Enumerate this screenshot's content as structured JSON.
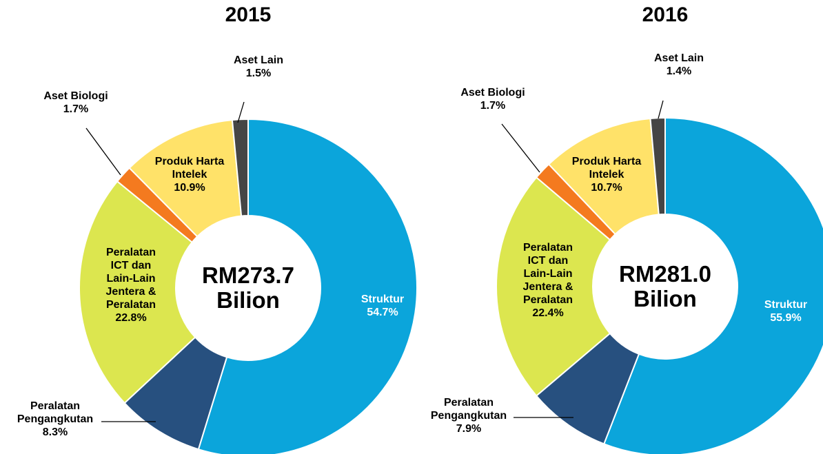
{
  "chart_data": [
    {
      "type": "donut",
      "title": "2015",
      "center_label": [
        "RM273.7",
        "Bilion"
      ],
      "categories": [
        "Struktur",
        "Peralatan Pengangkutan",
        "Peralatan ICT dan Lain-Lain Jentera & Peralatan",
        "Aset Biologi",
        "Produk Harta Intelek",
        "Aset Lain"
      ],
      "values": [
        54.7,
        8.3,
        22.8,
        1.7,
        10.9,
        1.5
      ],
      "value_labels": [
        "54.7%",
        "8.3%",
        "22.8%",
        "1.7%",
        "10.9%",
        "1.5%"
      ],
      "colors": [
        "#0ba5db",
        "#27507f",
        "#dce64f",
        "#f47a1f",
        "#ffe269",
        "#454545"
      ]
    },
    {
      "type": "donut",
      "title": "2016",
      "center_label": [
        "RM281.0",
        "Bilion"
      ],
      "categories": [
        "Struktur",
        "Peralatan Pengangkutan",
        "Peralatan ICT dan Lain-Lain Jentera & Peralatan",
        "Aset Biologi",
        "Produk Harta Intelek",
        "Aset Lain"
      ],
      "values": [
        55.9,
        7.9,
        22.4,
        1.7,
        10.7,
        1.4
      ],
      "value_labels": [
        "55.9%",
        "7.9%",
        "22.4%",
        "1.7%",
        "10.7%",
        "1.4%"
      ],
      "colors": [
        "#0ba5db",
        "#27507f",
        "#dce64f",
        "#f47a1f",
        "#ffe269",
        "#454545"
      ]
    }
  ]
}
